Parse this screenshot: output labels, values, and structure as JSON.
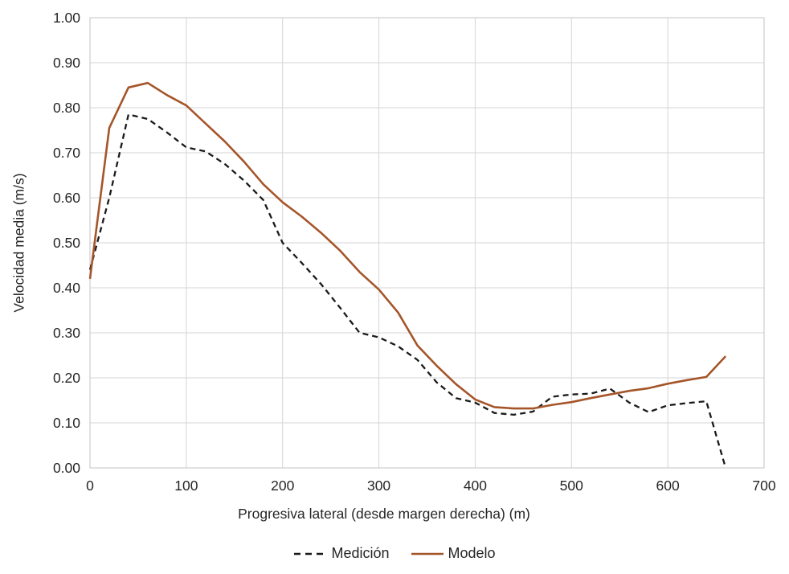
{
  "chart_data": {
    "type": "line",
    "title": "",
    "xlabel": "Progresiva lateral (desde margen derecha) (m)",
    "ylabel": "Velocidad media (m/s)",
    "xlim": [
      0,
      700
    ],
    "ylim": [
      0.0,
      1.0
    ],
    "x_ticks": [
      0,
      100,
      200,
      300,
      400,
      500,
      600,
      700
    ],
    "x_tick_labels": [
      "0",
      "100",
      "200",
      "300",
      "400",
      "500",
      "600",
      "700"
    ],
    "y_ticks": [
      0.0,
      0.1,
      0.2,
      0.3,
      0.4,
      0.5,
      0.6,
      0.7,
      0.8,
      0.9,
      1.0
    ],
    "y_tick_labels": [
      "0.00",
      "0.10",
      "0.20",
      "0.30",
      "0.40",
      "0.50",
      "0.60",
      "0.70",
      "0.80",
      "0.90",
      "1.00"
    ],
    "grid": true,
    "legend_position": "bottom-center",
    "x": [
      0,
      20,
      40,
      60,
      80,
      100,
      120,
      140,
      160,
      180,
      200,
      220,
      240,
      260,
      280,
      300,
      320,
      340,
      360,
      380,
      400,
      420,
      440,
      460,
      480,
      500,
      520,
      540,
      560,
      580,
      600,
      620,
      640,
      660
    ],
    "series": [
      {
        "name": "Medición",
        "style": "dashed",
        "color": "#1a1a1a",
        "values": [
          0.44,
          0.6,
          0.785,
          0.775,
          0.745,
          0.712,
          0.703,
          0.675,
          0.638,
          0.595,
          0.5,
          0.455,
          0.408,
          0.355,
          0.3,
          0.29,
          0.27,
          0.24,
          0.19,
          0.155,
          0.145,
          0.122,
          0.118,
          0.125,
          0.158,
          0.163,
          0.165,
          0.176,
          0.145,
          0.124,
          0.139,
          0.144,
          0.148,
          0.0
        ]
      },
      {
        "name": "Modelo",
        "style": "solid",
        "color": "#A5552A",
        "values": [
          0.42,
          0.755,
          0.845,
          0.855,
          0.828,
          0.805,
          0.765,
          0.725,
          0.68,
          0.63,
          0.59,
          0.558,
          0.522,
          0.482,
          0.435,
          0.396,
          0.345,
          0.272,
          0.227,
          0.186,
          0.152,
          0.135,
          0.132,
          0.132,
          0.14,
          0.146,
          0.155,
          0.163,
          0.171,
          0.177,
          0.187,
          0.195,
          0.202,
          0.248
        ]
      }
    ],
    "grid_color": "#d6d6d6",
    "border_color": "#c3c3c3",
    "text_color": "#262626"
  }
}
